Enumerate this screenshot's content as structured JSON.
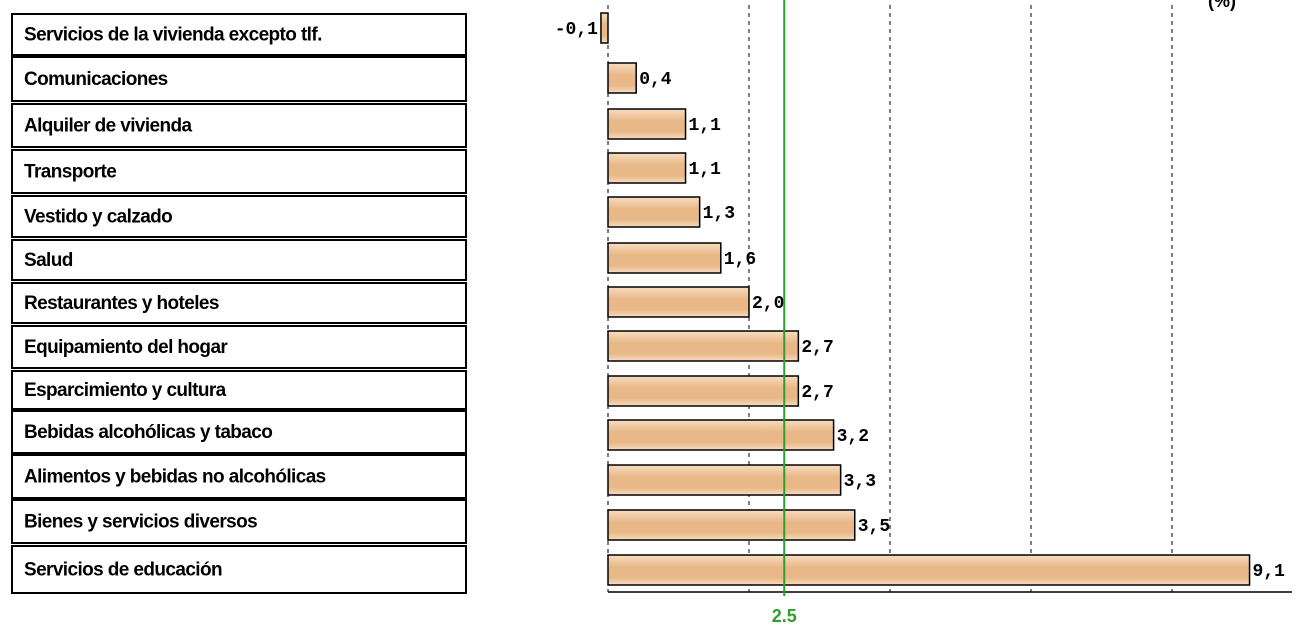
{
  "chart_data": {
    "type": "bar",
    "orientation": "horizontal",
    "title": "",
    "xlabel": "",
    "ylabel": "",
    "categories": [
      "Servicios de la vivienda excepto tlf.",
      "Comunicaciones",
      "Alquiler de vivienda",
      "Transporte",
      "Vestido y calzado",
      "Salud",
      "Restaurantes y hoteles",
      "Equipamiento del hogar",
      "Esparcimiento y cultura",
      "Bebidas alcohólicas y tabaco",
      "Alimentos y bebidas no alcohólicas",
      "Bienes y servicios diversos",
      "Servicios de educación"
    ],
    "values": [
      -0.1,
      0.4,
      1.1,
      1.1,
      1.3,
      1.6,
      2.0,
      2.7,
      2.7,
      3.2,
      3.3,
      3.5,
      9.1
    ],
    "value_labels": [
      "-0,1",
      "0,4",
      "1,1",
      "1,1",
      "1,3",
      "1,6",
      "2,0",
      "2,7",
      "2,7",
      "3,2",
      "3,3",
      "3,5",
      "9,1"
    ],
    "xlim": [
      0,
      10
    ],
    "gridlines_at": [
      2,
      4,
      6,
      8
    ],
    "grid": "vertical dashed",
    "reference_line": {
      "value": 2.5,
      "label": "2.5",
      "color": "#2e9e2e"
    },
    "bar_color": "#e8b888",
    "bar_color_light": "#f7dcc0",
    "bar_edge_color": "#000000",
    "header_fragment": "(%)"
  }
}
